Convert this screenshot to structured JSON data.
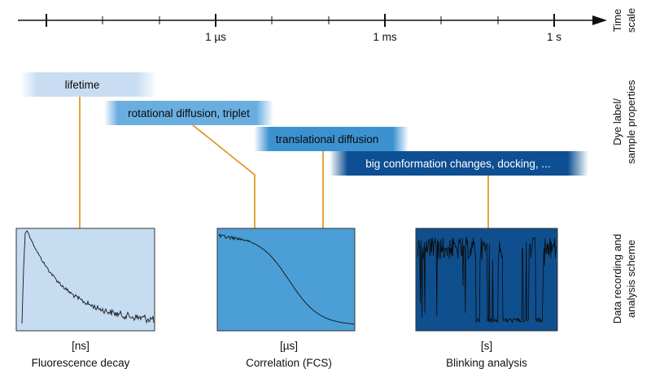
{
  "timescale": {
    "ticks": [
      "1 µs",
      "1 ms",
      "1 s"
    ],
    "side_label": [
      "Time",
      "scale"
    ]
  },
  "properties": {
    "side_label": [
      "Dye label/",
      "sample properties"
    ],
    "bands": [
      {
        "label": "lifetime",
        "color": "#c9ddf2"
      },
      {
        "label": "rotational diffusion, triplet",
        "color": "#6aaee0"
      },
      {
        "label": "translational diffusion",
        "color": "#3c92d0"
      },
      {
        "label": "big conformation changes, docking, ...",
        "color": "#0d4f92"
      }
    ]
  },
  "recording": {
    "side_label": [
      "Data recording and",
      "analysis scheme"
    ],
    "panels": [
      {
        "unit": "[ns]",
        "title": "Fluorescence decay",
        "color": "#c5dcf1"
      },
      {
        "unit": "[µs]",
        "title": "Correlation (FCS)",
        "color": "#4b9fd6"
      },
      {
        "unit": "[s]",
        "title": "Blinking analysis",
        "color": "#0f4f8e"
      }
    ]
  },
  "colors": {
    "arrow": "#e39a23",
    "axis": "#111111"
  }
}
